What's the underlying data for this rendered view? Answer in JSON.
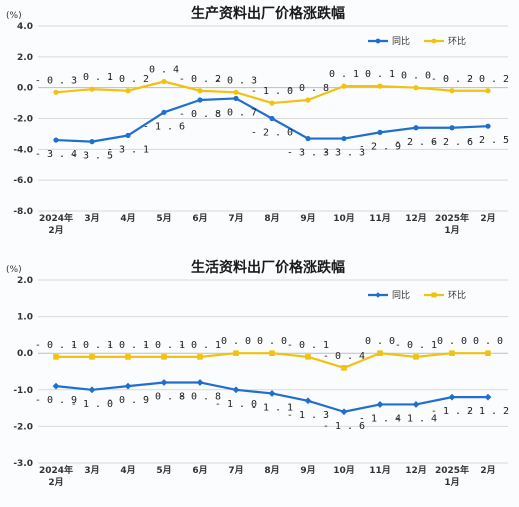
{
  "chart_data": [
    {
      "type": "line",
      "title": "生产资料出厂价格涨跌幅",
      "unit": "(%)",
      "categories": [
        [
          "2024年",
          "2月"
        ],
        [
          "3月"
        ],
        [
          "4月"
        ],
        [
          "5月"
        ],
        [
          "6月"
        ],
        [
          "7月"
        ],
        [
          "8月"
        ],
        [
          "9月"
        ],
        [
          "10月"
        ],
        [
          "11月"
        ],
        [
          "12月"
        ],
        [
          "2025年",
          "1月"
        ],
        [
          "2月"
        ]
      ],
      "ylim": [
        -8.0,
        4.0
      ],
      "yticks": [
        "4.0",
        "2.0",
        "0.0",
        "-2.0",
        "-4.0",
        "-6.0",
        "-8.0"
      ],
      "ytick_values": [
        4.0,
        2.0,
        0.0,
        -2.0,
        -4.0,
        -6.0,
        -8.0
      ],
      "legend_position": "top-right",
      "grid": true,
      "series": [
        {
          "name": "同比",
          "color": "#1f6fd1",
          "marker": "circle",
          "label_position": "below",
          "values": [
            -3.4,
            -3.5,
            -3.1,
            -1.6,
            -0.8,
            -0.7,
            -2.0,
            -3.3,
            -3.3,
            -2.9,
            -2.6,
            -2.6,
            -2.5
          ],
          "labels": [
            "-3.4",
            "-3.5",
            "-3.1",
            "-1.6",
            "-0.8",
            "-0.7",
            "-2.0",
            "-3.3",
            "-3.3",
            "-2.9",
            "-2.6",
            "-2.6",
            "-2.5"
          ]
        },
        {
          "name": "环比",
          "color": "#f2c211",
          "marker": "circle",
          "label_position": "above",
          "values": [
            -0.3,
            -0.1,
            -0.2,
            0.4,
            -0.2,
            -0.3,
            -1.0,
            -0.8,
            0.1,
            0.1,
            0.0,
            -0.2,
            -0.2
          ],
          "labels": [
            "-0.3",
            "-0.1",
            "-0.2",
            "0.4",
            "-0.2",
            "-0.3",
            "-1.0",
            "-0.8",
            "0.1",
            "0.1",
            "0.0",
            "-0.2",
            "-0.2"
          ]
        }
      ]
    },
    {
      "type": "line",
      "title": "生活资料出厂价格涨跌幅",
      "unit": "(%)",
      "categories": [
        [
          "2024年",
          "2月"
        ],
        [
          "3月"
        ],
        [
          "4月"
        ],
        [
          "5月"
        ],
        [
          "6月"
        ],
        [
          "7月"
        ],
        [
          "8月"
        ],
        [
          "9月"
        ],
        [
          "10月"
        ],
        [
          "11月"
        ],
        [
          "12月"
        ],
        [
          "2025年",
          "1月"
        ],
        [
          "2月"
        ]
      ],
      "ylim": [
        -3.0,
        2.0
      ],
      "yticks": [
        "2.0",
        "1.0",
        "0.0",
        "-1.0",
        "-2.0",
        "-3.0"
      ],
      "ytick_values": [
        2.0,
        1.0,
        0.0,
        -1.0,
        -2.0,
        -3.0
      ],
      "legend_position": "top-right",
      "grid": true,
      "series": [
        {
          "name": "同比",
          "color": "#1f6fd1",
          "marker": "diamond",
          "label_position": "below",
          "values": [
            -0.9,
            -1.0,
            -0.9,
            -0.8,
            -0.8,
            -1.0,
            -1.1,
            -1.3,
            -1.6,
            -1.4,
            -1.4,
            -1.2,
            -1.2
          ],
          "labels": [
            "-0.9",
            "-1.0",
            "-0.9",
            "-0.8",
            "-0.8",
            "-1.0",
            "-1.1",
            "-1.3",
            "-1.6",
            "-1.4",
            "-1.4",
            "-1.2",
            "-1.2"
          ]
        },
        {
          "name": "环比",
          "color": "#f2c211",
          "marker": "square",
          "label_position": "above",
          "values": [
            -0.1,
            -0.1,
            -0.1,
            -0.1,
            -0.1,
            0.0,
            0.0,
            -0.1,
            -0.4,
            0.0,
            -0.1,
            0.0,
            0.0
          ],
          "labels": [
            "-0.1",
            "-0.1",
            "-0.1",
            "-0.1",
            "-0.1",
            "0.0",
            "0.0",
            "-0.1",
            "-0.4",
            "0.0",
            "-0.1",
            "0.0",
            "0.0"
          ]
        }
      ]
    }
  ]
}
